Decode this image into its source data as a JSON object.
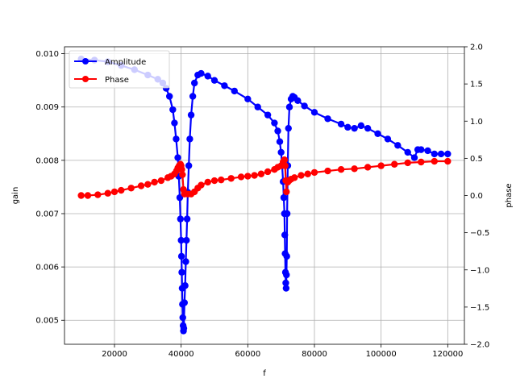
{
  "colors": {
    "amplitude": "#0000ff",
    "phase": "#ff0000",
    "grid": "#b0b0b0",
    "frame": "#000000"
  },
  "chart_data": {
    "type": "line",
    "xlabel": "f",
    "ylabel": "gain",
    "y2label": "phase",
    "xlim": [
      5000,
      125000
    ],
    "ylim": [
      0.00455,
      0.01013
    ],
    "y2lim": [
      -2.0,
      2.0
    ],
    "grid": true,
    "legend_position": "top-left",
    "x_ticks": [
      20000,
      40000,
      60000,
      80000,
      100000,
      120000
    ],
    "x_tick_labels": [
      "20000",
      "40000",
      "60000",
      "80000",
      "100000",
      "120000"
    ],
    "y_ticks": [
      0.005,
      0.006,
      0.007,
      0.008,
      0.009,
      0.01
    ],
    "y_tick_labels": [
      "0.005",
      "0.006",
      "0.007",
      "0.008",
      "0.009",
      "0.010"
    ],
    "y2_ticks": [
      2.0,
      1.5,
      1.0,
      0.5,
      0.0,
      -0.5,
      -1.0,
      -1.5,
      -2.0
    ],
    "y2_tick_labels": [
      "2.0",
      "1.5",
      "1.0",
      "0.5",
      "0.0",
      "−0.5",
      "−1.0",
      "−1.5",
      "−2.0"
    ],
    "series": [
      {
        "name": "Amplitude",
        "axis": "left",
        "color": "#0000ff",
        "marker": "circle",
        "x": [
          10000,
          14000,
          18000,
          22000,
          26000,
          30000,
          33000,
          34500,
          35500,
          36500,
          37500,
          38000,
          38500,
          39000,
          39300,
          39600,
          39800,
          40000,
          40100,
          40200,
          40300,
          40400,
          40500,
          40600,
          40700,
          40800,
          41000,
          41200,
          41400,
          41600,
          41800,
          42000,
          42300,
          42600,
          43000,
          43500,
          44000,
          45000,
          46000,
          48000,
          50000,
          53000,
          56000,
          60000,
          63000,
          66000,
          68000,
          69000,
          69600,
          70000,
          70300,
          70600,
          70800,
          71000,
          71100,
          71200,
          71300,
          71400,
          71500,
          71600,
          71700,
          71800,
          72000,
          72200,
          72500,
          73000,
          73500,
          74000,
          75000,
          77000,
          80000,
          84000,
          88000,
          90000,
          92000,
          94000,
          96000,
          99000,
          102000,
          105000,
          108000,
          110000,
          111000,
          112000,
          114000,
          116000,
          118000,
          120000
        ],
        "values": [
          0.0099,
          0.00988,
          0.00985,
          0.00978,
          0.0097,
          0.0096,
          0.00952,
          0.00945,
          0.00935,
          0.0092,
          0.00895,
          0.0087,
          0.0084,
          0.00805,
          0.0077,
          0.0073,
          0.0069,
          0.0065,
          0.0062,
          0.0059,
          0.0056,
          0.0053,
          0.00505,
          0.0049,
          0.0048,
          0.00485,
          0.00533,
          0.00565,
          0.0061,
          0.0065,
          0.0069,
          0.0074,
          0.0079,
          0.0084,
          0.00885,
          0.0092,
          0.00945,
          0.0096,
          0.00963,
          0.00958,
          0.0095,
          0.0094,
          0.0093,
          0.00915,
          0.009,
          0.00885,
          0.0087,
          0.00855,
          0.00835,
          0.00815,
          0.0079,
          0.0076,
          0.0073,
          0.007,
          0.0066,
          0.00625,
          0.0059,
          0.0057,
          0.0056,
          0.00585,
          0.0062,
          0.007,
          0.0079,
          0.0086,
          0.009,
          0.00915,
          0.0092,
          0.00918,
          0.00912,
          0.00902,
          0.0089,
          0.00878,
          0.00868,
          0.00862,
          0.0086,
          0.00865,
          0.0086,
          0.0085,
          0.0084,
          0.00828,
          0.00815,
          0.00805,
          0.0082,
          0.0082,
          0.00818,
          0.00812,
          0.00812,
          0.00812
        ]
      },
      {
        "name": "Phase",
        "axis": "right",
        "color": "#ff0000",
        "marker": "circle",
        "x": [
          10000,
          12000,
          15000,
          18000,
          20000,
          22000,
          25000,
          28000,
          30000,
          32000,
          34000,
          36000,
          37000,
          38000,
          38600,
          39000,
          39400,
          39800,
          40000,
          40200,
          40400,
          40700,
          41000,
          42000,
          43000,
          44000,
          45000,
          46000,
          48000,
          50000,
          52000,
          55000,
          58000,
          60000,
          62000,
          64000,
          66000,
          68000,
          69000,
          70000,
          70600,
          71000,
          71200,
          71400,
          71600,
          71800,
          72000,
          72400,
          73000,
          74000,
          76000,
          78000,
          80000,
          84000,
          88000,
          92000,
          96000,
          100000,
          104000,
          108000,
          112000,
          116000,
          120000
        ],
        "values": [
          0.0,
          0.0,
          0.01,
          0.03,
          0.05,
          0.07,
          0.1,
          0.13,
          0.15,
          0.18,
          0.2,
          0.24,
          0.26,
          0.29,
          0.33,
          0.37,
          0.4,
          0.42,
          0.4,
          0.35,
          0.28,
          0.08,
          0.02,
          0.02,
          0.02,
          0.05,
          0.1,
          0.14,
          0.18,
          0.2,
          0.21,
          0.23,
          0.25,
          0.26,
          0.27,
          0.29,
          0.32,
          0.35,
          0.38,
          0.4,
          0.45,
          0.48,
          0.4,
          0.2,
          0.05,
          0.2,
          0.18,
          0.2,
          0.22,
          0.24,
          0.27,
          0.29,
          0.31,
          0.33,
          0.35,
          0.36,
          0.38,
          0.4,
          0.42,
          0.44,
          0.45,
          0.46,
          0.46
        ]
      }
    ]
  }
}
